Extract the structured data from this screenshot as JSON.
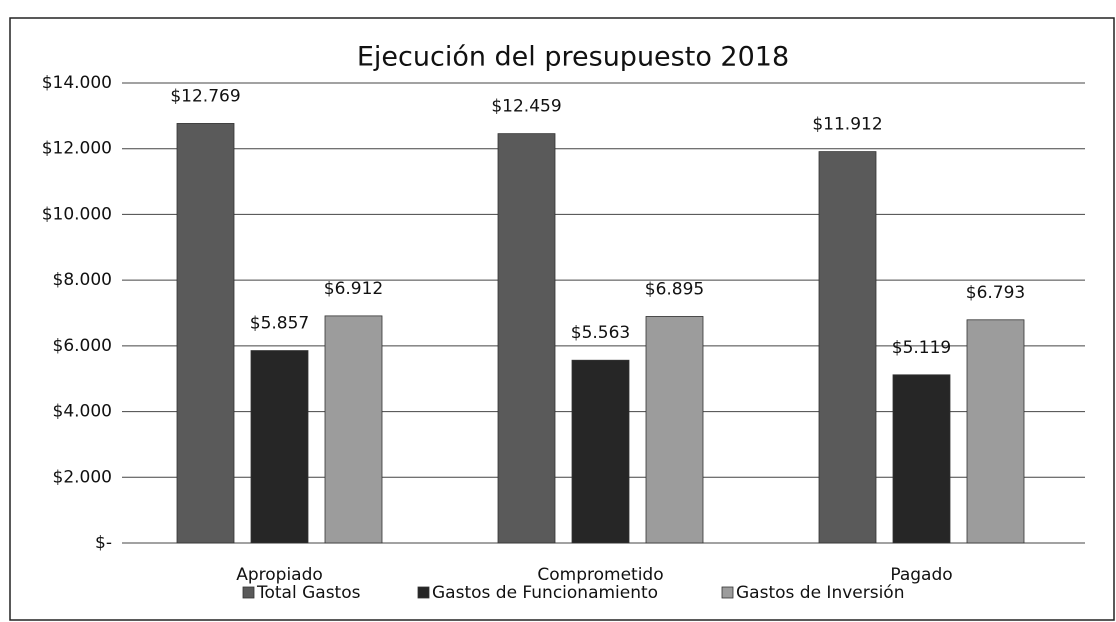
{
  "chart_data": {
    "type": "bar",
    "title": "Ejecución del presupuesto 2018",
    "categories": [
      "Apropiado",
      "Comprometido",
      "Pagado"
    ],
    "series": [
      {
        "name": "Total Gastos",
        "color": "#5a5a5a",
        "values": [
          12769,
          12459,
          11912
        ],
        "value_labels": [
          "$12.769",
          "$12.459",
          "$11.912"
        ]
      },
      {
        "name": "Gastos de Funcionamiento",
        "color": "#262626",
        "values": [
          5857,
          5563,
          5119
        ],
        "value_labels": [
          "$5.857",
          "$5.563",
          "$5.119"
        ]
      },
      {
        "name": "Gastos de Inversión",
        "color": "#9c9c9c",
        "values": [
          6912,
          6895,
          6793
        ],
        "value_labels": [
          "$6.912",
          "$6.895",
          "$6.793"
        ]
      }
    ],
    "ylim": [
      0,
      14000
    ],
    "yticks": [
      {
        "value": 0,
        "label": "$-"
      },
      {
        "value": 2000,
        "label": "$2.000"
      },
      {
        "value": 4000,
        "label": "$4.000"
      },
      {
        "value": 6000,
        "label": "$6.000"
      },
      {
        "value": 8000,
        "label": "$8.000"
      },
      {
        "value": 10000,
        "label": "$10.000"
      },
      {
        "value": 12000,
        "label": "$12.000"
      },
      {
        "value": 14000,
        "label": "$14.000"
      }
    ],
    "grid": true,
    "legend": "bottom"
  }
}
